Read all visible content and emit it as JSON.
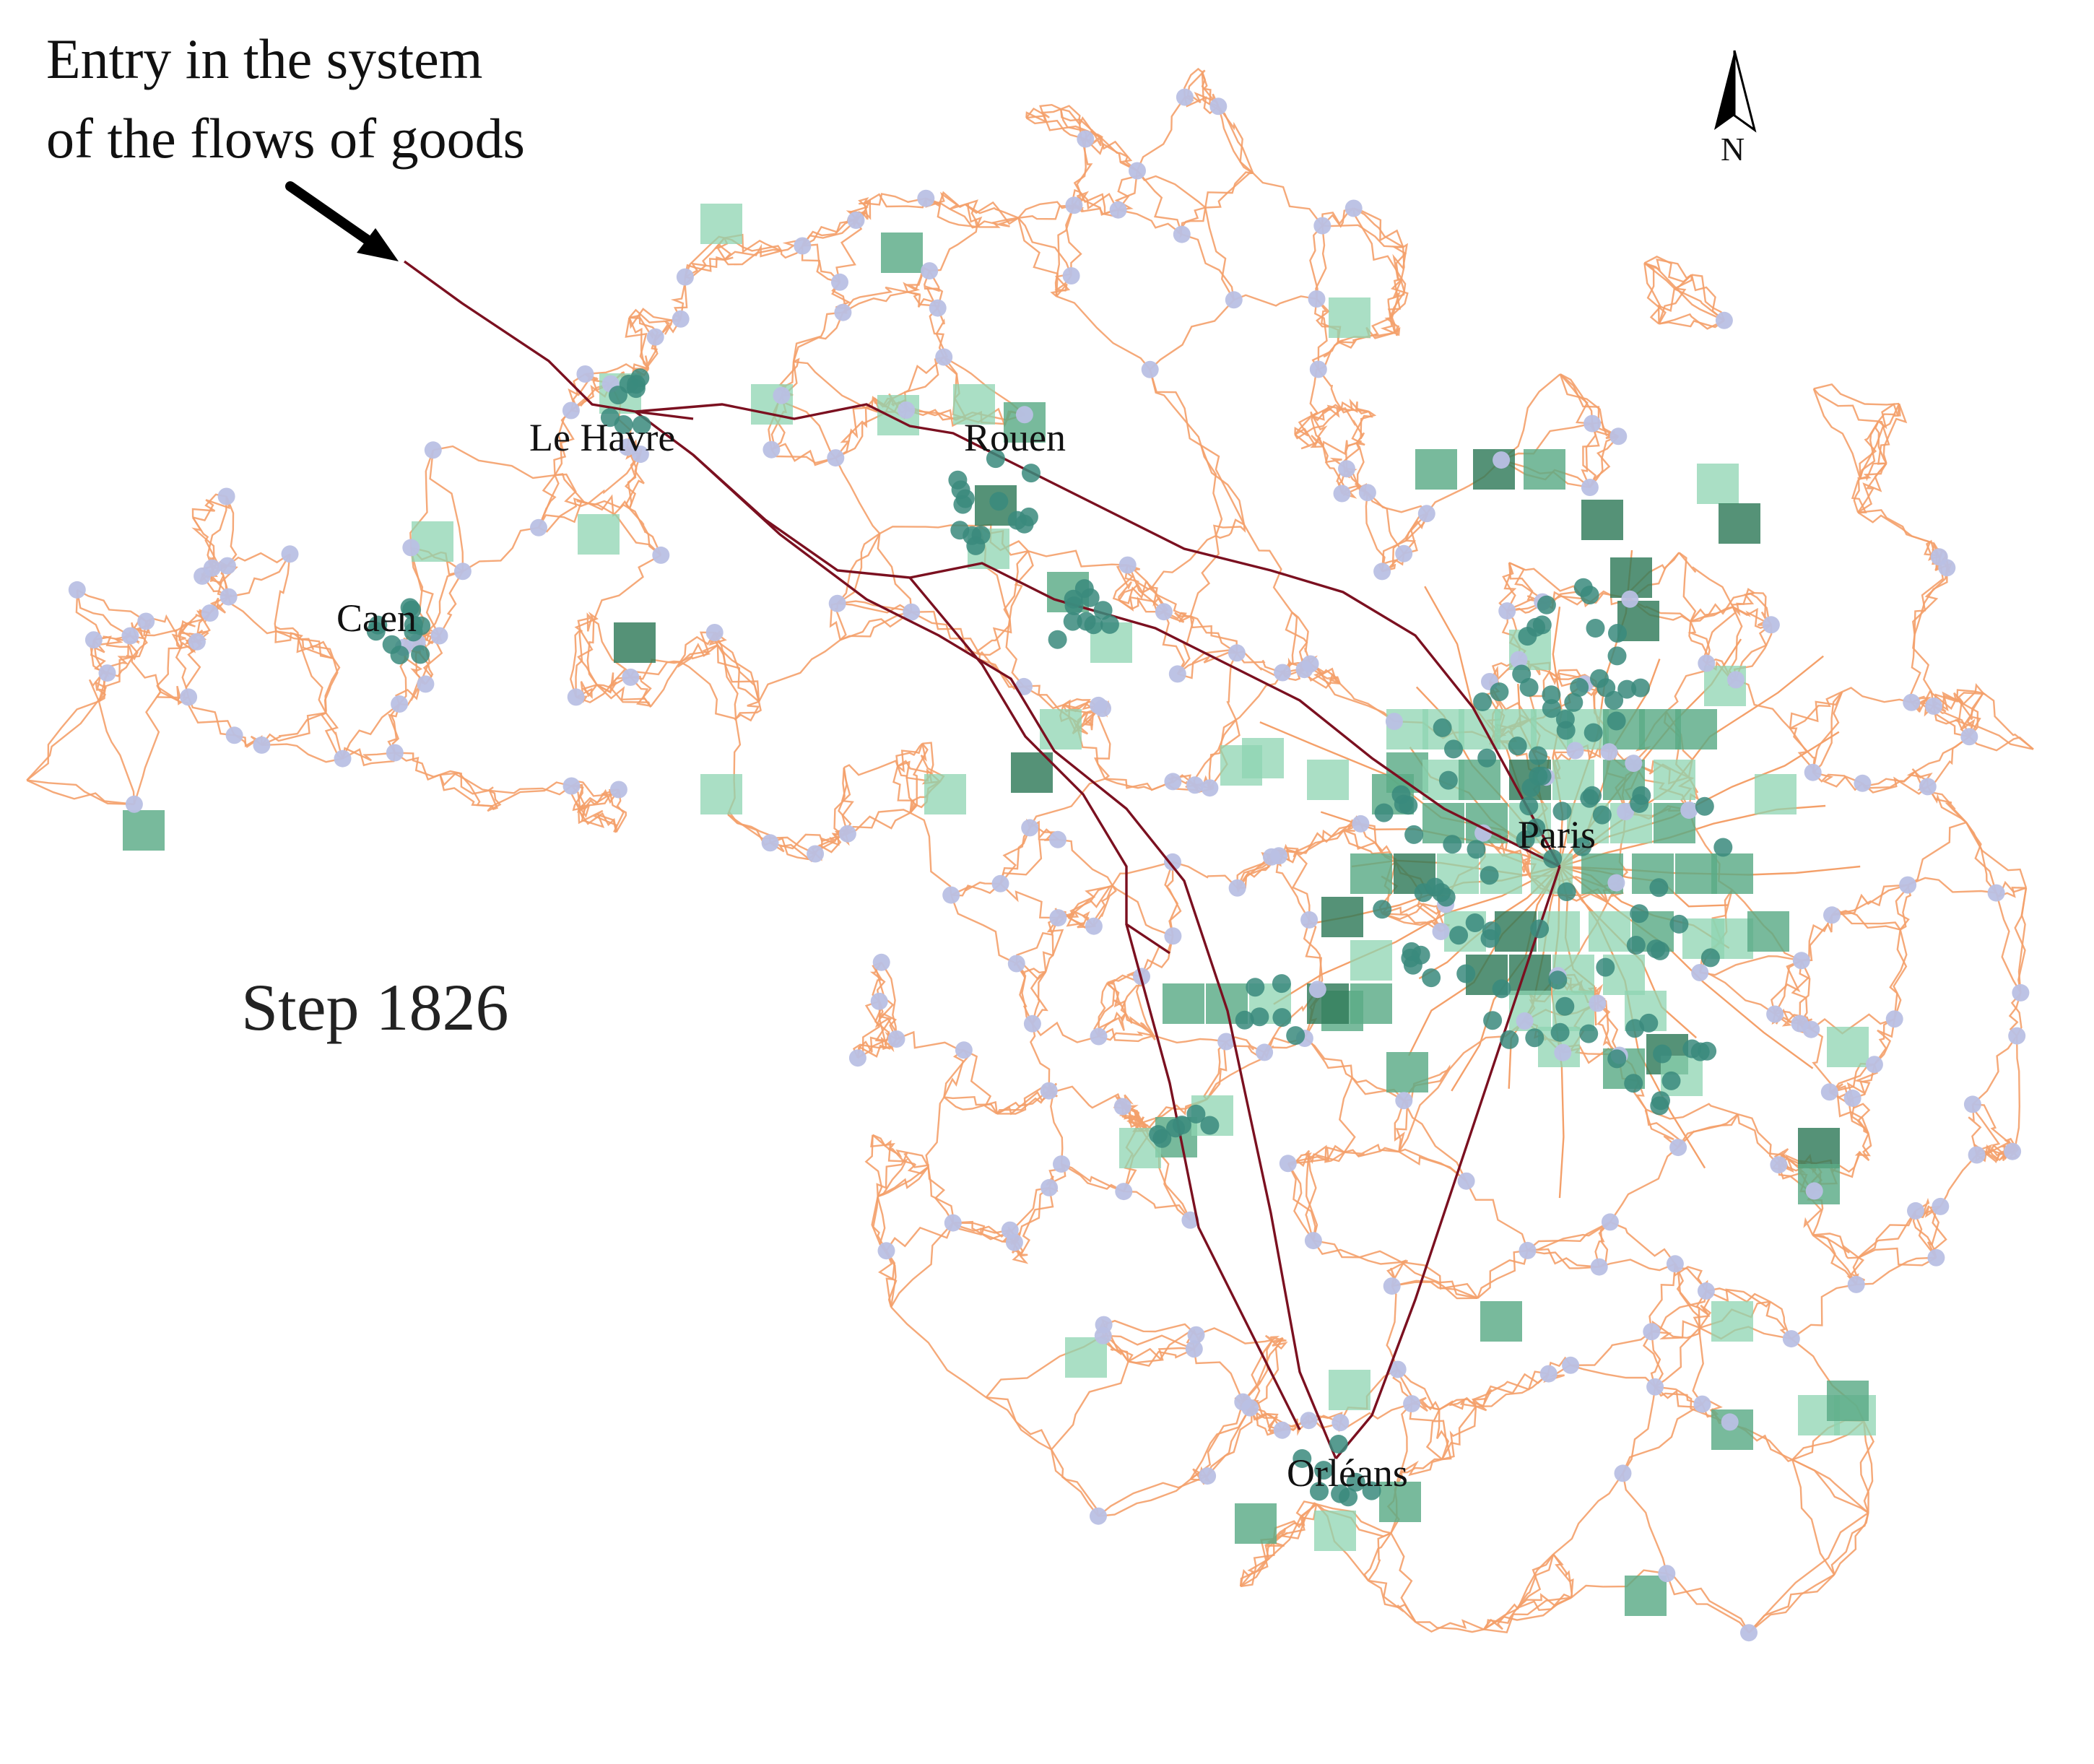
{
  "annotation": {
    "line1": "Entry in the system",
    "line2": "of the flows of goods"
  },
  "step": {
    "label": "Step 1826"
  },
  "north": {
    "label": "N"
  },
  "cities": {
    "le_havre": "Le Havre",
    "rouen": "Rouen",
    "caen": "Caen",
    "paris": "Paris",
    "orleans": "Orléans"
  },
  "colors": {
    "road": "#f4a06a",
    "flow": "#7b1020",
    "town": "#b9c0e4",
    "cell_light": "#8ed4b1",
    "cell_mid": "#5aab86",
    "cell_dark": "#2f7a59",
    "node": "#3a8a7c"
  },
  "map_features": [
    "road network",
    "flow of goods path",
    "town points",
    "activity grid cells"
  ]
}
